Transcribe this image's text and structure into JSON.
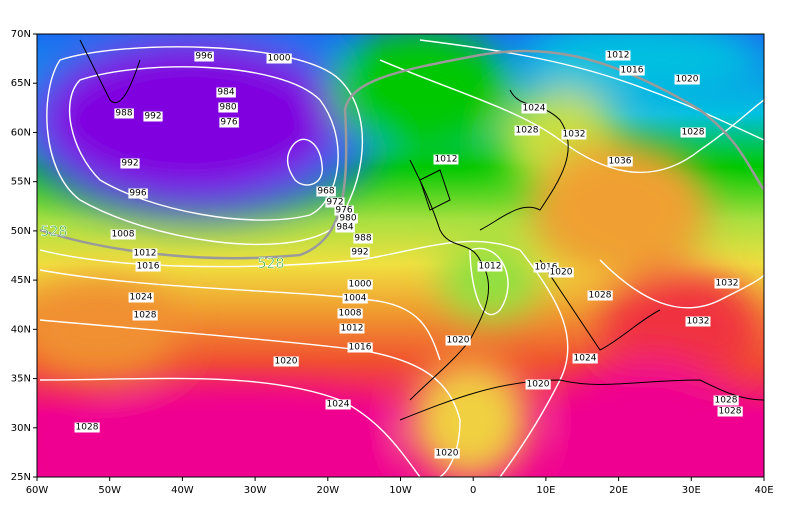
{
  "map": {
    "lat_labels": [
      "70N",
      "65N",
      "60N",
      "55N",
      "50N",
      "45N",
      "40N",
      "35N",
      "30N",
      "25N"
    ],
    "lon_labels": [
      "60W",
      "50W",
      "40W",
      "30W",
      "20W",
      "10W",
      "0",
      "10E",
      "20E",
      "30E",
      "40E"
    ],
    "isobar_labels": [
      "996",
      "1000",
      "1012",
      "1016",
      "1020",
      "988",
      "992",
      "984",
      "980",
      "976",
      "1024",
      "1028",
      "1032",
      "1028",
      "992",
      "1012",
      "1036",
      "996",
      "968",
      "972",
      "976",
      "980",
      "984",
      "988",
      "992",
      "1008",
      "1012",
      "1016",
      "1012",
      "1016",
      "1020",
      "1032",
      "1000",
      "1004",
      "1028",
      "1024",
      "1028",
      "1008",
      "1012",
      "1032",
      "1016",
      "1020",
      "1024",
      "1020",
      "1020",
      "1024",
      "1028",
      "1028",
      "1028",
      "1020"
    ],
    "thickness_labels": [
      "528",
      "528"
    ]
  }
}
